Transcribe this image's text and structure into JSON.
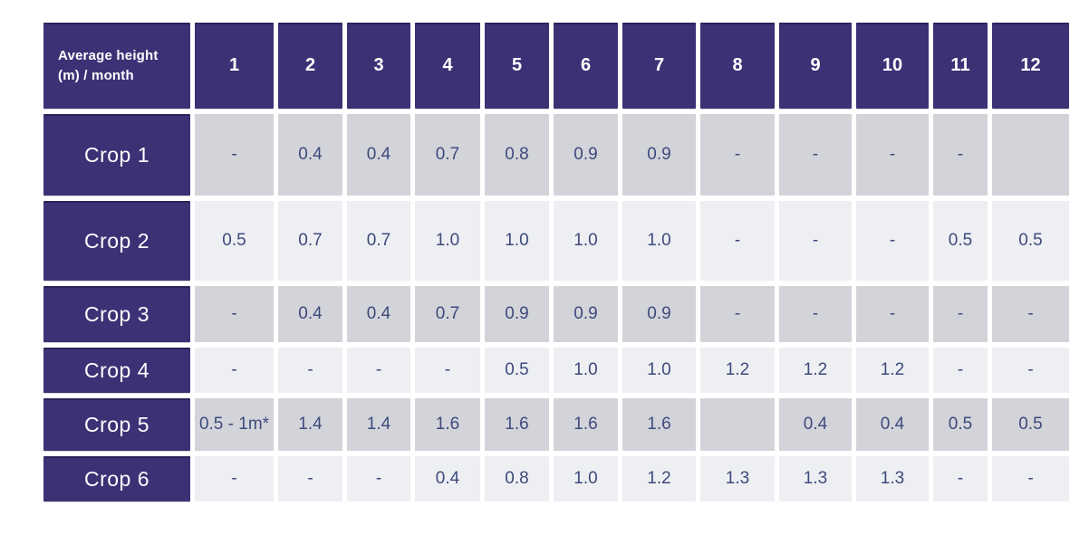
{
  "chart_data": {
    "type": "table",
    "corner_label": "Average height (m) / month",
    "columns": [
      "1",
      "2",
      "3",
      "4",
      "5",
      "6",
      "7",
      "8",
      "9",
      "10",
      "11",
      "12"
    ],
    "rows": [
      {
        "label": "Crop 1",
        "values": [
          "-",
          "0.4",
          "0.4",
          "0.7",
          "0.8",
          "0.9",
          "0.9",
          "-",
          "-",
          "-",
          "-",
          ""
        ]
      },
      {
        "label": "Crop 2",
        "values": [
          "0.5",
          "0.7",
          "0.7",
          "1.0",
          "1.0",
          "1.0",
          "1.0",
          "-",
          "-",
          "-",
          "0.5",
          "0.5"
        ]
      },
      {
        "label": "Crop 3",
        "values": [
          "-",
          "0.4",
          "0.4",
          "0.7",
          "0.9",
          "0.9",
          "0.9",
          "-",
          "-",
          "-",
          "-",
          "-"
        ]
      },
      {
        "label": "Crop 4",
        "values": [
          "-",
          "-",
          "-",
          "-",
          "0.5",
          "1.0",
          "1.0",
          "1.2",
          "1.2",
          "1.2",
          "-",
          "-"
        ]
      },
      {
        "label": "Crop 5",
        "values": [
          "0.5 - 1m*",
          "1.4",
          "1.4",
          "1.6",
          "1.6",
          "1.6",
          "1.6",
          "",
          "0.4",
          "0.4",
          "0.5",
          "0.5"
        ]
      },
      {
        "label": "Crop 6",
        "values": [
          "-",
          "-",
          "-",
          "0.4",
          "0.8",
          "1.0",
          "1.2",
          "1.3",
          "1.3",
          "1.3",
          "-",
          "-"
        ]
      }
    ]
  },
  "colors": {
    "header_bg": "#3b3276",
    "row_gray_bg": "#d2d4da",
    "row_light_bg": "#edeff3",
    "header_text": "#ffffff",
    "value_text": "#3e4a7b",
    "page_bg": "#ffffff"
  }
}
